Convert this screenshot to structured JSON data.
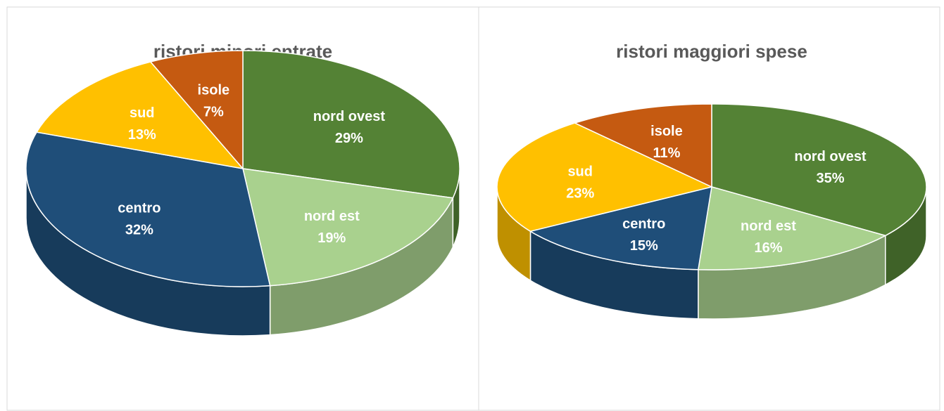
{
  "chart_data": [
    {
      "type": "pie",
      "title": "ristori minori entrate",
      "categories": [
        "nord ovest",
        "nord est",
        "centro",
        "sud",
        "isole"
      ],
      "values": [
        29,
        19,
        32,
        13,
        7
      ],
      "value_labels": [
        "29%",
        "19%",
        "32%",
        "13%",
        "7%"
      ],
      "colors": [
        "#548235",
        "#a9d18e",
        "#1f4e79",
        "#ffc000",
        "#c55a11"
      ]
    },
    {
      "type": "pie",
      "title": "ristori maggiori spese",
      "categories": [
        "nord ovest",
        "nord est",
        "centro",
        "sud",
        "isole"
      ],
      "values": [
        35,
        16,
        15,
        23,
        11
      ],
      "value_labels": [
        "35%",
        "16%",
        "15%",
        "23%",
        "11%"
      ],
      "colors": [
        "#548235",
        "#a9d18e",
        "#1f4e79",
        "#ffc000",
        "#c55a11"
      ]
    }
  ]
}
